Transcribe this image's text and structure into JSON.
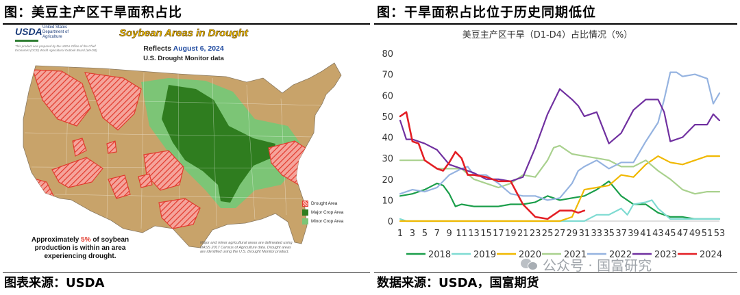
{
  "left_panel": {
    "title": "图：美豆主产区干旱面积占比",
    "source": "图表来源：USDA",
    "map": {
      "logo_text": "USDA",
      "dept_text": "United States Department of Agriculture",
      "prepared_note": "This product was prepared by the USDA Office of the Chief Economist (OCE) World Agricultural Outlook Board (WAOB)",
      "title": "Soybean Areas in Drought",
      "reflects_label": "Reflects",
      "reflects_date": "August 6, 2024",
      "subtitle": "U.S. Drought Monitor data",
      "legend": [
        {
          "label": "Drought Area",
          "color": "#e23b2e"
        },
        {
          "label": "Major Crop Area",
          "color": "#2f7d1f"
        },
        {
          "label": "Minor Crop Area",
          "color": "#7cc576"
        }
      ],
      "callout_before": "Approximately ",
      "callout_pct": "5%",
      "callout_after": " of soybean production is within an area experiencing drought.",
      "footnote": "Major and minor agricultural areas are delineated using NASS 2017 Census of Agriculture data. Drought areas are identified using the U.S. Drought Monitor product.",
      "colors": {
        "land": "#c8a36a",
        "water": "#9fd3e6",
        "drought": "#e23b2e",
        "major": "#2f7d1f",
        "minor": "#7cc576"
      }
    }
  },
  "right_panel": {
    "title": "图：干旱面积占比位于历史同期低位",
    "source": "数据来源：USDA，国富期货",
    "watermark": "公众号 · 国富研究"
  },
  "chart_data": {
    "type": "line",
    "title": "美豆主产区干旱（D1-D4）占比情况（%）",
    "xlabel": "",
    "ylabel": "",
    "xlim": [
      1,
      53
    ],
    "ylim": [
      0,
      80
    ],
    "yticks": [
      0,
      10,
      20,
      30,
      40,
      50,
      60,
      70,
      80
    ],
    "xticks": [
      1,
      3,
      5,
      7,
      9,
      11,
      13,
      15,
      17,
      19,
      21,
      23,
      25,
      27,
      29,
      31,
      33,
      35,
      37,
      39,
      41,
      43,
      45,
      47,
      49,
      51,
      53
    ],
    "grid": false,
    "legend_position": "bottom",
    "series": [
      {
        "name": "2018",
        "color": "#1a9e4a",
        "points": [
          [
            1,
            12
          ],
          [
            3,
            13
          ],
          [
            5,
            15
          ],
          [
            7,
            18
          ],
          [
            8,
            17
          ],
          [
            9,
            13
          ],
          [
            10,
            7
          ],
          [
            11,
            8
          ],
          [
            13,
            7
          ],
          [
            15,
            7
          ],
          [
            17,
            7
          ],
          [
            19,
            8
          ],
          [
            21,
            8
          ],
          [
            23,
            9
          ],
          [
            25,
            12
          ],
          [
            27,
            10
          ],
          [
            29,
            11
          ],
          [
            31,
            12
          ],
          [
            33,
            15
          ],
          [
            35,
            19
          ],
          [
            37,
            12
          ],
          [
            39,
            8
          ],
          [
            41,
            8
          ],
          [
            43,
            4
          ],
          [
            45,
            2
          ],
          [
            47,
            2
          ],
          [
            49,
            1
          ],
          [
            51,
            1
          ],
          [
            53,
            1
          ]
        ]
      },
      {
        "name": "2019",
        "color": "#7fdbd2",
        "points": [
          [
            1,
            1
          ],
          [
            2,
            0
          ],
          [
            3,
            0
          ],
          [
            5,
            0
          ],
          [
            7,
            0
          ],
          [
            9,
            0
          ],
          [
            11,
            0
          ],
          [
            13,
            0
          ],
          [
            15,
            0
          ],
          [
            17,
            0
          ],
          [
            19,
            0
          ],
          [
            21,
            0
          ],
          [
            23,
            0
          ],
          [
            25,
            0
          ],
          [
            27,
            0
          ],
          [
            29,
            0
          ],
          [
            31,
            0
          ],
          [
            33,
            3
          ],
          [
            35,
            3
          ],
          [
            37,
            6
          ],
          [
            38,
            3
          ],
          [
            39,
            8
          ],
          [
            41,
            9
          ],
          [
            42,
            10
          ],
          [
            43,
            6
          ],
          [
            45,
            1
          ],
          [
            47,
            1
          ],
          [
            49,
            1
          ],
          [
            51,
            1
          ],
          [
            53,
            1
          ]
        ]
      },
      {
        "name": "2020",
        "color": "#f0b800",
        "points": [
          [
            1,
            0
          ],
          [
            3,
            0
          ],
          [
            5,
            0
          ],
          [
            7,
            0
          ],
          [
            9,
            0
          ],
          [
            11,
            0
          ],
          [
            13,
            0
          ],
          [
            15,
            0
          ],
          [
            17,
            0
          ],
          [
            19,
            0
          ],
          [
            21,
            0
          ],
          [
            23,
            0
          ],
          [
            25,
            0
          ],
          [
            27,
            0
          ],
          [
            29,
            2
          ],
          [
            31,
            15
          ],
          [
            33,
            16
          ],
          [
            35,
            17
          ],
          [
            37,
            22
          ],
          [
            39,
            21
          ],
          [
            41,
            27
          ],
          [
            43,
            31
          ],
          [
            45,
            28
          ],
          [
            47,
            27
          ],
          [
            49,
            29
          ],
          [
            51,
            31
          ],
          [
            53,
            31
          ]
        ]
      },
      {
        "name": "2021",
        "color": "#a9d18e",
        "points": [
          [
            1,
            29
          ],
          [
            3,
            29
          ],
          [
            5,
            29
          ],
          [
            7,
            25
          ],
          [
            9,
            25
          ],
          [
            11,
            25
          ],
          [
            13,
            20
          ],
          [
            15,
            18
          ],
          [
            17,
            16
          ],
          [
            19,
            18
          ],
          [
            21,
            22
          ],
          [
            23,
            21
          ],
          [
            25,
            29
          ],
          [
            26,
            35
          ],
          [
            27,
            36
          ],
          [
            29,
            32
          ],
          [
            31,
            31
          ],
          [
            33,
            30
          ],
          [
            35,
            29
          ],
          [
            37,
            26
          ],
          [
            39,
            26
          ],
          [
            41,
            29
          ],
          [
            43,
            24
          ],
          [
            45,
            20
          ],
          [
            47,
            15
          ],
          [
            49,
            13
          ],
          [
            51,
            14
          ],
          [
            53,
            14
          ]
        ]
      },
      {
        "name": "2022",
        "color": "#95b3e0",
        "points": [
          [
            1,
            13
          ],
          [
            3,
            15
          ],
          [
            5,
            14
          ],
          [
            7,
            16
          ],
          [
            9,
            22
          ],
          [
            11,
            25
          ],
          [
            12,
            26
          ],
          [
            13,
            22
          ],
          [
            15,
            22
          ],
          [
            17,
            18
          ],
          [
            19,
            13
          ],
          [
            21,
            12
          ],
          [
            23,
            12
          ],
          [
            25,
            10
          ],
          [
            27,
            11
          ],
          [
            29,
            18
          ],
          [
            30,
            24
          ],
          [
            31,
            26
          ],
          [
            33,
            29
          ],
          [
            35,
            25
          ],
          [
            37,
            28
          ],
          [
            38,
            28
          ],
          [
            39,
            28
          ],
          [
            41,
            38
          ],
          [
            43,
            47
          ],
          [
            44,
            58
          ],
          [
            45,
            71
          ],
          [
            46,
            71
          ],
          [
            47,
            69
          ],
          [
            49,
            70
          ],
          [
            51,
            68
          ],
          [
            52,
            56
          ],
          [
            53,
            61
          ]
        ]
      },
      {
        "name": "2023",
        "color": "#7030a0",
        "points": [
          [
            1,
            48
          ],
          [
            2,
            39
          ],
          [
            3,
            39
          ],
          [
            5,
            37
          ],
          [
            7,
            34
          ],
          [
            9,
            27
          ],
          [
            11,
            25
          ],
          [
            13,
            23
          ],
          [
            15,
            20
          ],
          [
            17,
            20
          ],
          [
            19,
            19
          ],
          [
            21,
            21
          ],
          [
            23,
            35
          ],
          [
            25,
            51
          ],
          [
            27,
            63
          ],
          [
            29,
            58
          ],
          [
            30,
            55
          ],
          [
            31,
            50
          ],
          [
            33,
            52
          ],
          [
            35,
            37
          ],
          [
            37,
            42
          ],
          [
            39,
            53
          ],
          [
            41,
            58
          ],
          [
            43,
            58
          ],
          [
            44,
            52
          ],
          [
            45,
            38
          ],
          [
            47,
            40
          ],
          [
            49,
            46
          ],
          [
            51,
            46
          ],
          [
            52,
            51
          ],
          [
            53,
            48
          ]
        ]
      },
      {
        "name": "2024",
        "color": "#e31e24",
        "points": [
          [
            1,
            50
          ],
          [
            2,
            52
          ],
          [
            3,
            38
          ],
          [
            4,
            37
          ],
          [
            5,
            29
          ],
          [
            7,
            25
          ],
          [
            8,
            24
          ],
          [
            9,
            28
          ],
          [
            10,
            33
          ],
          [
            11,
            30
          ],
          [
            12,
            22
          ],
          [
            13,
            22
          ],
          [
            15,
            21
          ],
          [
            17,
            19
          ],
          [
            19,
            19
          ],
          [
            21,
            8
          ],
          [
            23,
            2
          ],
          [
            25,
            1
          ],
          [
            27,
            5
          ],
          [
            29,
            5
          ],
          [
            30,
            4
          ],
          [
            31,
            5
          ]
        ]
      }
    ]
  }
}
